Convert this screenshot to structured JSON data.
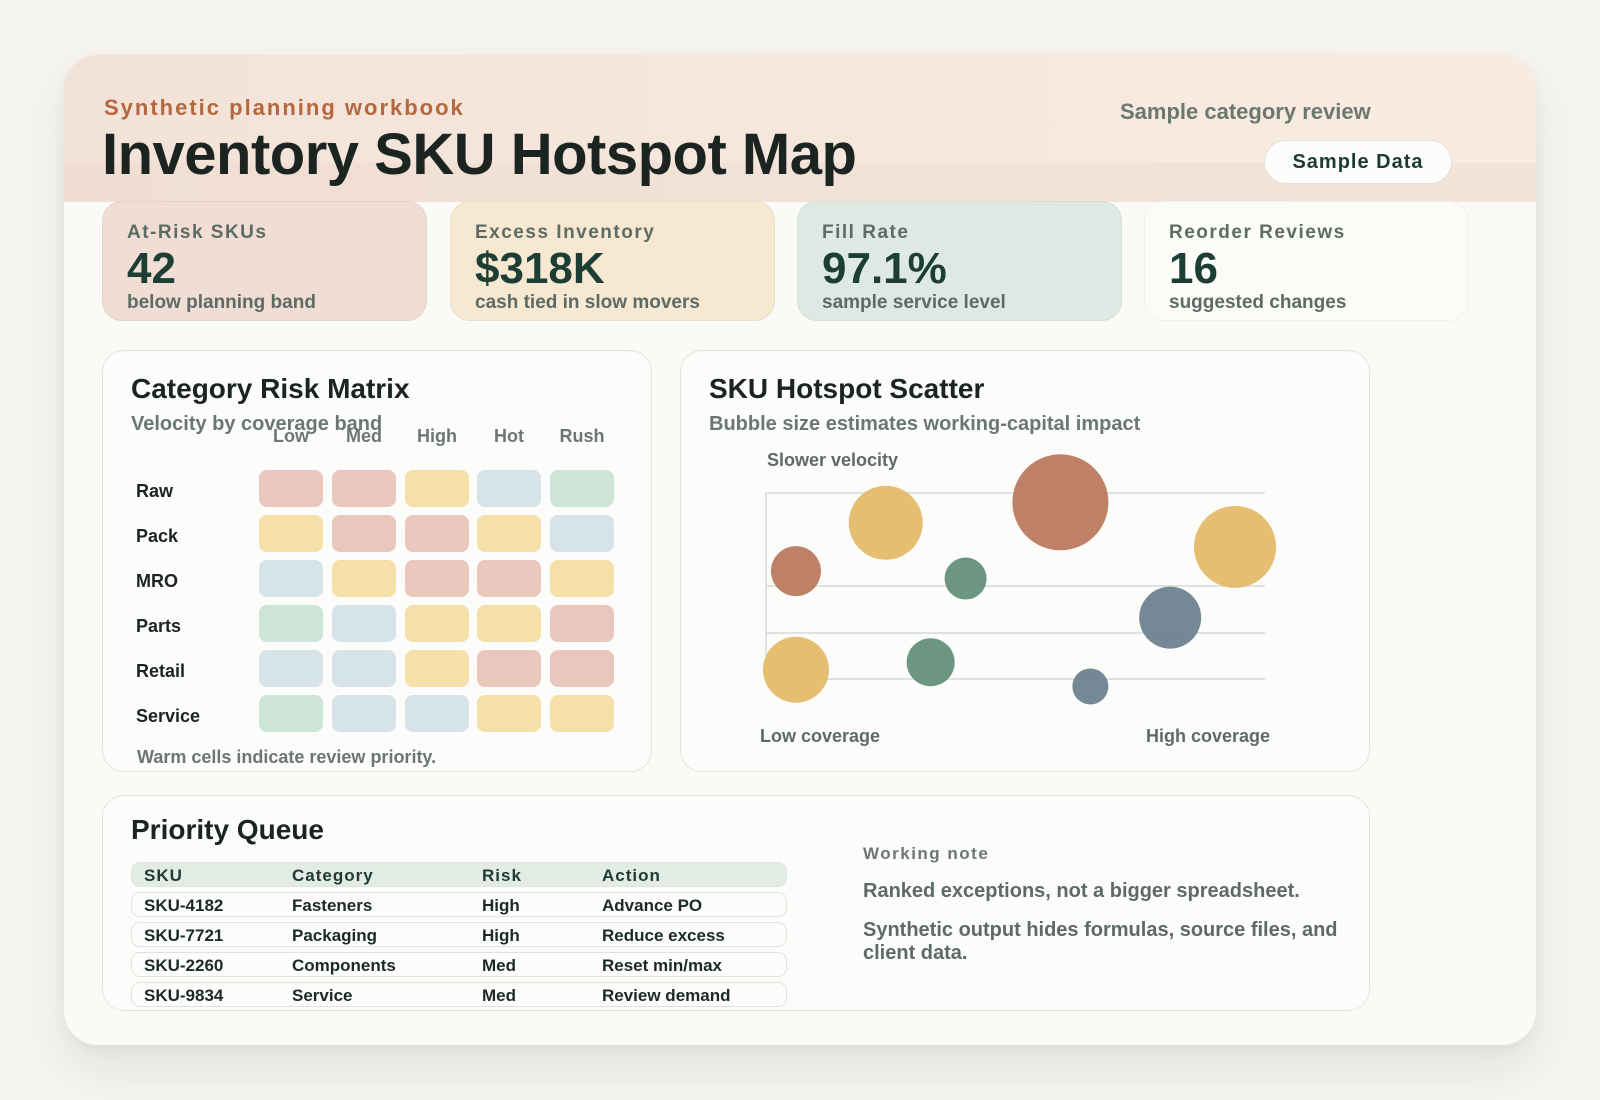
{
  "header": {
    "eyebrow": "Synthetic planning workbook",
    "title": "Inventory SKU Hotspot Map",
    "review_label": "Sample category review",
    "badge": "Sample Data"
  },
  "kpis": [
    {
      "label": "At-Risk SKUs",
      "value": "42",
      "note": "below planning band",
      "color": "#f0ddd4"
    },
    {
      "label": "Excess Inventory",
      "value": "$318K",
      "note": "cash tied in slow movers",
      "color": "#f6e8d1"
    },
    {
      "label": "Fill Rate",
      "value": "97.1%",
      "note": "sample service level",
      "color": "#dde9e2"
    },
    {
      "label": "Reorder Reviews",
      "value": "16",
      "note": "suggested changes",
      "color": "#fbfbf8"
    }
  ],
  "matrix": {
    "title": "Category Risk Matrix",
    "subtitle": "Velocity by coverage band",
    "columns": [
      "Low",
      "Med",
      "High",
      "Hot",
      "Rush"
    ],
    "rows": [
      "Raw",
      "Pack",
      "MRO",
      "Parts",
      "Retail",
      "Service"
    ],
    "cells": [
      [
        "red",
        "red",
        "yellow",
        "blue",
        "green"
      ],
      [
        "yellow",
        "red",
        "red",
        "yellow",
        "blue"
      ],
      [
        "blue",
        "yellow",
        "red",
        "red",
        "yellow"
      ],
      [
        "green",
        "blue",
        "yellow",
        "yellow",
        "red"
      ],
      [
        "blue",
        "blue",
        "yellow",
        "red",
        "red"
      ],
      [
        "green",
        "blue",
        "blue",
        "yellow",
        "yellow"
      ]
    ],
    "palette": {
      "red": "#e9c7bd",
      "yellow": "#f5e0aa",
      "blue": "#d6e4e9",
      "green": "#cde4d8"
    },
    "note": "Warm cells indicate review priority."
  },
  "scatter": {
    "title": "SKU Hotspot Scatter",
    "subtitle": "Bubble size estimates working-capital impact",
    "y_top_label": "Slower velocity",
    "x_left_label": "Low coverage",
    "x_right_label": "High coverage"
  },
  "chart_data": {
    "type": "scatter",
    "title": "SKU Hotspot Scatter",
    "subtitle": "Bubble size estimates working-capital impact",
    "xlabel": "Low coverage → High coverage",
    "ylabel": "Slower velocity",
    "grid": true,
    "points": [
      {
        "x": 0.06,
        "y": 0.58,
        "size": 25,
        "color": "#b8765a"
      },
      {
        "x": 0.24,
        "y": 0.84,
        "size": 37,
        "color": "#e3b865"
      },
      {
        "x": 0.4,
        "y": 0.54,
        "size": 21,
        "color": "#5f8c79"
      },
      {
        "x": 0.59,
        "y": 0.95,
        "size": 48,
        "color": "#b8765a"
      },
      {
        "x": 0.94,
        "y": 0.71,
        "size": 41,
        "color": "#e3b865"
      },
      {
        "x": 0.81,
        "y": 0.33,
        "size": 31,
        "color": "#687f8c"
      },
      {
        "x": 0.06,
        "y": 0.05,
        "size": 33,
        "color": "#e3b865"
      },
      {
        "x": 0.33,
        "y": 0.09,
        "size": 24,
        "color": "#5f8c79"
      },
      {
        "x": 0.65,
        "y": -0.04,
        "size": 18,
        "color": "#687f8c"
      }
    ]
  },
  "queue": {
    "title": "Priority Queue",
    "headers": [
      "SKU",
      "Category",
      "Risk",
      "Action"
    ],
    "rows": [
      [
        "SKU-4182",
        "Fasteners",
        "High",
        "Advance PO"
      ],
      [
        "SKU-7721",
        "Packaging",
        "High",
        "Reduce excess"
      ],
      [
        "SKU-2260",
        "Components",
        "Med",
        "Reset min/max"
      ],
      [
        "SKU-9834",
        "Service",
        "Med",
        "Review demand"
      ]
    ],
    "note_label": "Working note",
    "note_lines": [
      "Ranked exceptions, not a bigger spreadsheet.",
      "Synthetic output hides formulas, source files, and client data."
    ]
  }
}
